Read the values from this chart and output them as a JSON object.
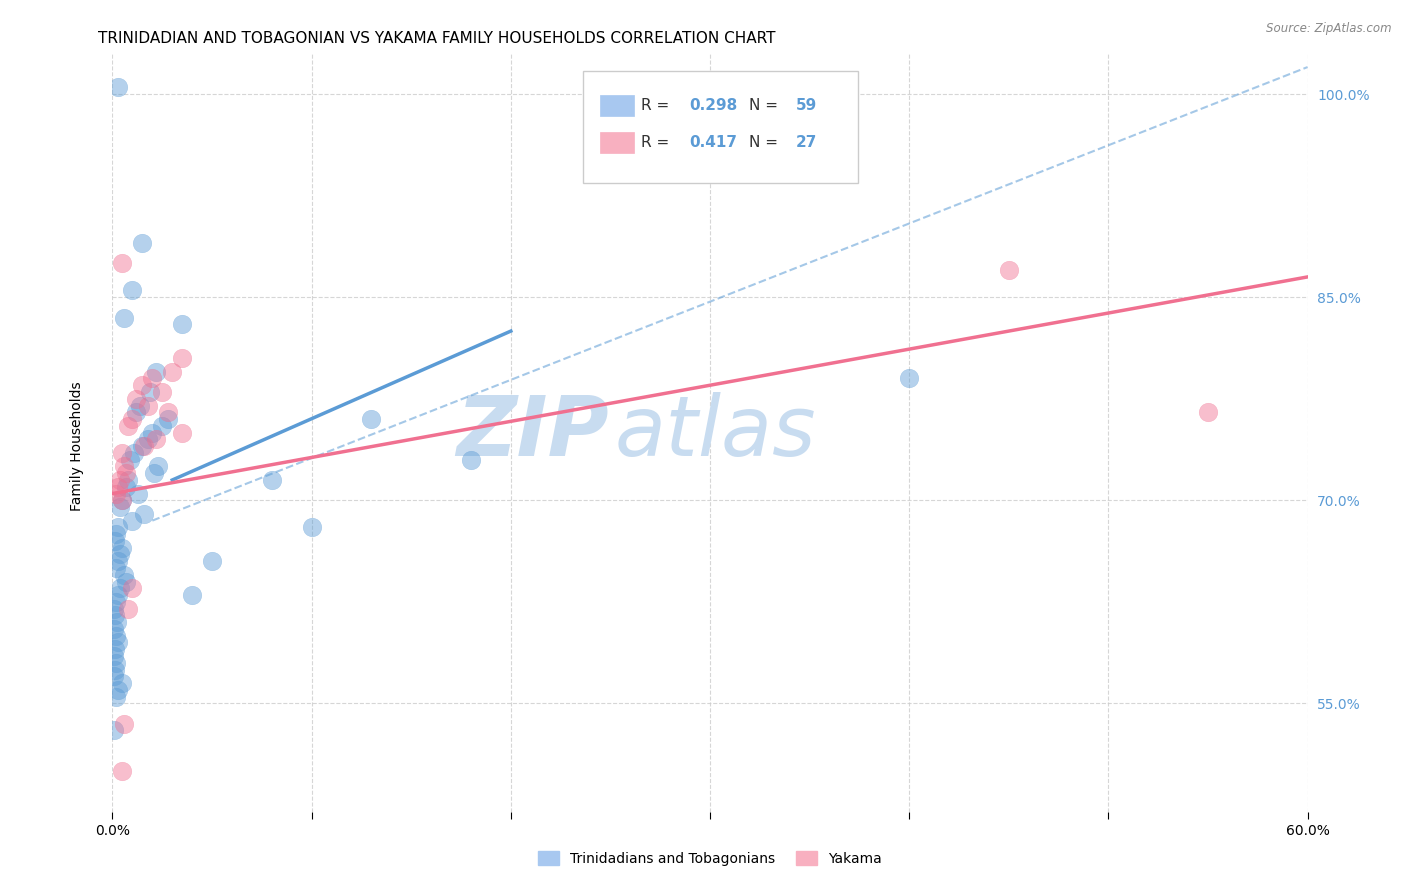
{
  "title": "TRINIDADIAN AND TOBAGONIAN VS YAKAMA FAMILY HOUSEHOLDS CORRELATION CHART",
  "source": "Source: ZipAtlas.com",
  "ylabel": "Family Households",
  "xlim": [
    0.0,
    60.0
  ],
  "ylim": [
    47.0,
    103.0
  ],
  "ytick_values": [
    55.0,
    70.0,
    85.0,
    100.0
  ],
  "xtick_values": [
    0.0,
    10.0,
    20.0,
    30.0,
    40.0,
    50.0,
    60.0
  ],
  "blue_scatter": [
    [
      0.3,
      100.5
    ],
    [
      1.5,
      89.0
    ],
    [
      1.0,
      85.5
    ],
    [
      0.6,
      83.5
    ],
    [
      3.5,
      83.0
    ],
    [
      2.2,
      79.5
    ],
    [
      1.9,
      78.0
    ],
    [
      1.4,
      77.0
    ],
    [
      1.2,
      76.5
    ],
    [
      2.8,
      76.0
    ],
    [
      2.5,
      75.5
    ],
    [
      2.0,
      75.0
    ],
    [
      1.8,
      74.5
    ],
    [
      1.5,
      74.0
    ],
    [
      1.1,
      73.5
    ],
    [
      0.9,
      73.0
    ],
    [
      2.3,
      72.5
    ],
    [
      2.1,
      72.0
    ],
    [
      0.8,
      71.5
    ],
    [
      0.7,
      71.0
    ],
    [
      1.3,
      70.5
    ],
    [
      0.5,
      70.0
    ],
    [
      0.4,
      69.5
    ],
    [
      1.6,
      69.0
    ],
    [
      1.0,
      68.5
    ],
    [
      0.3,
      68.0
    ],
    [
      0.2,
      67.5
    ],
    [
      0.15,
      67.0
    ],
    [
      0.5,
      66.5
    ],
    [
      0.4,
      66.0
    ],
    [
      0.3,
      65.5
    ],
    [
      0.2,
      65.0
    ],
    [
      0.6,
      64.5
    ],
    [
      0.7,
      64.0
    ],
    [
      0.4,
      63.5
    ],
    [
      0.3,
      63.0
    ],
    [
      0.2,
      62.5
    ],
    [
      0.1,
      62.0
    ],
    [
      0.15,
      61.5
    ],
    [
      0.25,
      61.0
    ],
    [
      0.1,
      60.5
    ],
    [
      0.2,
      60.0
    ],
    [
      0.3,
      59.5
    ],
    [
      0.15,
      59.0
    ],
    [
      0.1,
      58.5
    ],
    [
      0.2,
      58.0
    ],
    [
      0.15,
      57.5
    ],
    [
      0.1,
      57.0
    ],
    [
      0.5,
      56.5
    ],
    [
      0.3,
      56.0
    ],
    [
      0.2,
      55.5
    ],
    [
      10.0,
      68.0
    ],
    [
      8.0,
      71.5
    ],
    [
      5.0,
      65.5
    ],
    [
      4.0,
      63.0
    ],
    [
      18.0,
      73.0
    ],
    [
      13.0,
      76.0
    ],
    [
      40.0,
      79.0
    ],
    [
      0.1,
      53.0
    ]
  ],
  "pink_scatter": [
    [
      0.5,
      87.5
    ],
    [
      3.5,
      80.5
    ],
    [
      3.0,
      79.5
    ],
    [
      2.0,
      79.0
    ],
    [
      2.5,
      78.0
    ],
    [
      1.5,
      78.5
    ],
    [
      1.2,
      77.5
    ],
    [
      1.8,
      77.0
    ],
    [
      2.8,
      76.5
    ],
    [
      1.0,
      76.0
    ],
    [
      0.8,
      75.5
    ],
    [
      3.5,
      75.0
    ],
    [
      2.2,
      74.5
    ],
    [
      1.6,
      74.0
    ],
    [
      0.5,
      73.5
    ],
    [
      0.6,
      72.5
    ],
    [
      0.7,
      72.0
    ],
    [
      0.4,
      71.5
    ],
    [
      0.3,
      71.0
    ],
    [
      0.2,
      70.5
    ],
    [
      0.5,
      70.0
    ],
    [
      1.0,
      63.5
    ],
    [
      0.8,
      62.0
    ],
    [
      45.0,
      87.0
    ],
    [
      55.0,
      76.5
    ],
    [
      0.6,
      53.5
    ],
    [
      0.5,
      50.0
    ]
  ],
  "blue_line": {
    "x0": 3.0,
    "y0": 71.5,
    "x1": 20.0,
    "y1": 82.5
  },
  "pink_line": {
    "x0": 0.0,
    "y0": 70.5,
    "x1": 60.0,
    "y1": 86.5
  },
  "dashed_line": {
    "x0": 2.0,
    "y0": 68.5,
    "x1": 60.0,
    "y1": 102.0
  },
  "blue_color": "#5b9bd5",
  "pink_color": "#f07090",
  "dashed_color": "#5b9bd5",
  "grid_color": "#cccccc",
  "background_color": "#ffffff",
  "title_fontsize": 11,
  "axis_label_fontsize": 10,
  "tick_fontsize": 10,
  "watermark_text": "ZIP",
  "watermark_text2": "atlas",
  "watermark_color": "#c8dcf0",
  "watermark_fontsize": 60,
  "scatter_size": 180,
  "scatter_alpha": 0.45
}
